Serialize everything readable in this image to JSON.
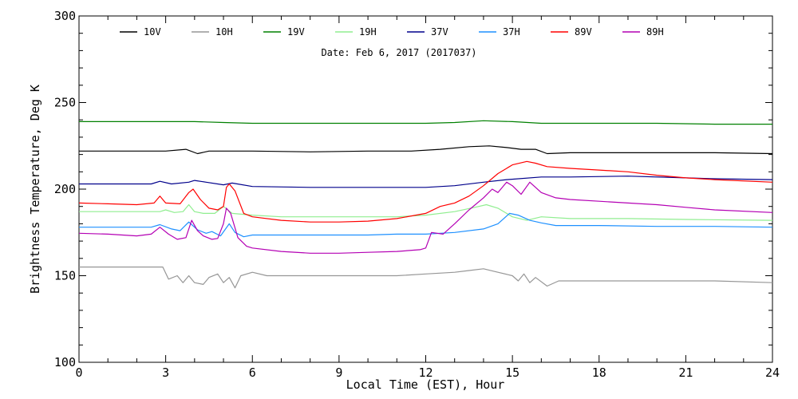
{
  "chart_data": {
    "type": "line",
    "title": "Date: Feb  6, 2017 (2017037)",
    "xlabel": "Local Time (EST), Hour",
    "ylabel": "Brightness Temperature, Deg K",
    "xlim": [
      0,
      24
    ],
    "ylim": [
      100,
      300
    ],
    "xticks": [
      0,
      3,
      6,
      9,
      12,
      15,
      18,
      21,
      24
    ],
    "yticks": [
      100,
      150,
      200,
      250,
      300
    ],
    "grid": false,
    "legend_position": "top",
    "series": [
      {
        "name": "10V",
        "color": "#000000",
        "points": [
          [
            0,
            222
          ],
          [
            2,
            222
          ],
          [
            3,
            222
          ],
          [
            3.7,
            223
          ],
          [
            4.1,
            220.5
          ],
          [
            4.5,
            222
          ],
          [
            6,
            222
          ],
          [
            8,
            221.5
          ],
          [
            10,
            222
          ],
          [
            11.5,
            222
          ],
          [
            12.5,
            223
          ],
          [
            13.5,
            224.5
          ],
          [
            14.2,
            225
          ],
          [
            14.8,
            224
          ],
          [
            15.3,
            223
          ],
          [
            15.8,
            223
          ],
          [
            16.2,
            220.5
          ],
          [
            17,
            221
          ],
          [
            18,
            221
          ],
          [
            20,
            221
          ],
          [
            22,
            221
          ],
          [
            24,
            220.5
          ]
        ]
      },
      {
        "name": "10H",
        "color": "#969696",
        "points": [
          [
            0,
            155
          ],
          [
            1,
            155
          ],
          [
            2,
            155
          ],
          [
            2.9,
            155
          ],
          [
            3.1,
            148
          ],
          [
            3.4,
            150
          ],
          [
            3.6,
            146
          ],
          [
            3.8,
            150
          ],
          [
            4,
            146
          ],
          [
            4.3,
            145
          ],
          [
            4.5,
            149
          ],
          [
            4.8,
            151
          ],
          [
            5,
            146
          ],
          [
            5.2,
            149
          ],
          [
            5.4,
            143
          ],
          [
            5.6,
            150
          ],
          [
            6,
            152
          ],
          [
            6.5,
            150
          ],
          [
            8,
            150
          ],
          [
            10,
            150
          ],
          [
            11,
            150
          ],
          [
            12,
            151
          ],
          [
            13,
            152
          ],
          [
            13.5,
            153
          ],
          [
            14,
            154
          ],
          [
            14.5,
            152
          ],
          [
            15,
            150
          ],
          [
            15.2,
            147
          ],
          [
            15.4,
            151
          ],
          [
            15.6,
            146
          ],
          [
            15.8,
            149
          ],
          [
            16.2,
            144
          ],
          [
            16.6,
            147
          ],
          [
            18,
            147
          ],
          [
            20,
            147
          ],
          [
            22,
            147
          ],
          [
            24,
            146
          ]
        ]
      },
      {
        "name": "19V",
        "color": "#008000",
        "points": [
          [
            0,
            239
          ],
          [
            3,
            239
          ],
          [
            4,
            239
          ],
          [
            5,
            238.5
          ],
          [
            6,
            238
          ],
          [
            9,
            238
          ],
          [
            12,
            238
          ],
          [
            13,
            238.5
          ],
          [
            14,
            239.5
          ],
          [
            15,
            239
          ],
          [
            16,
            238
          ],
          [
            18,
            238
          ],
          [
            20,
            238
          ],
          [
            22,
            237.5
          ],
          [
            24,
            237.5
          ]
        ]
      },
      {
        "name": "19H",
        "color": "#90EE90",
        "points": [
          [
            0,
            187
          ],
          [
            2,
            187
          ],
          [
            2.8,
            187
          ],
          [
            3,
            188
          ],
          [
            3.3,
            186.5
          ],
          [
            3.6,
            187
          ],
          [
            3.8,
            191
          ],
          [
            4,
            187
          ],
          [
            4.3,
            186
          ],
          [
            4.7,
            186
          ],
          [
            5,
            190
          ],
          [
            5.3,
            186
          ],
          [
            6,
            185
          ],
          [
            7,
            184
          ],
          [
            9,
            184
          ],
          [
            11,
            184
          ],
          [
            12,
            185
          ],
          [
            13,
            187
          ],
          [
            13.7,
            189.5
          ],
          [
            14.1,
            191
          ],
          [
            14.5,
            189
          ],
          [
            15,
            184
          ],
          [
            15.5,
            182
          ],
          [
            16,
            184
          ],
          [
            17,
            183
          ],
          [
            19,
            183
          ],
          [
            21,
            182.5
          ],
          [
            24,
            182
          ]
        ]
      },
      {
        "name": "37V",
        "color": "#00008B",
        "points": [
          [
            0,
            203
          ],
          [
            1,
            203
          ],
          [
            2.5,
            203
          ],
          [
            2.8,
            204.5
          ],
          [
            3.2,
            203
          ],
          [
            3.8,
            204
          ],
          [
            4,
            205
          ],
          [
            4.4,
            204
          ],
          [
            5,
            202.5
          ],
          [
            5.3,
            203.5
          ],
          [
            6,
            201.5
          ],
          [
            8,
            201
          ],
          [
            10,
            201
          ],
          [
            12,
            201
          ],
          [
            13,
            202
          ],
          [
            14,
            204
          ],
          [
            14.8,
            205.5
          ],
          [
            16,
            207
          ],
          [
            17,
            207
          ],
          [
            19,
            207.5
          ],
          [
            21,
            206.5
          ],
          [
            22,
            206
          ],
          [
            24,
            205.5
          ]
        ]
      },
      {
        "name": "37H",
        "color": "#1E90FF",
        "points": [
          [
            0,
            178
          ],
          [
            1,
            178
          ],
          [
            2.5,
            178
          ],
          [
            2.8,
            179.5
          ],
          [
            3.2,
            177
          ],
          [
            3.5,
            176
          ],
          [
            3.8,
            181
          ],
          [
            4.1,
            176.5
          ],
          [
            4.4,
            174.5
          ],
          [
            4.6,
            175.5
          ],
          [
            4.9,
            173
          ],
          [
            5.2,
            180
          ],
          [
            5.4,
            175
          ],
          [
            5.7,
            172.5
          ],
          [
            6,
            173.5
          ],
          [
            8,
            173.5
          ],
          [
            10,
            173.5
          ],
          [
            11,
            174
          ],
          [
            12,
            174
          ],
          [
            13,
            175
          ],
          [
            14,
            177
          ],
          [
            14.5,
            180
          ],
          [
            14.9,
            186
          ],
          [
            15.2,
            185
          ],
          [
            15.6,
            182
          ],
          [
            16,
            180.5
          ],
          [
            16.5,
            179
          ],
          [
            18,
            179
          ],
          [
            20,
            178.5
          ],
          [
            22,
            178.5
          ],
          [
            24,
            178
          ]
        ]
      },
      {
        "name": "89V",
        "color": "#FF0000",
        "points": [
          [
            0,
            192
          ],
          [
            1,
            191.5
          ],
          [
            2,
            191
          ],
          [
            2.6,
            192
          ],
          [
            2.8,
            196
          ],
          [
            3,
            192
          ],
          [
            3.5,
            191.5
          ],
          [
            3.8,
            198
          ],
          [
            3.95,
            200
          ],
          [
            4.2,
            194
          ],
          [
            4.5,
            189
          ],
          [
            4.8,
            188
          ],
          [
            5,
            190
          ],
          [
            5.1,
            201
          ],
          [
            5.2,
            203
          ],
          [
            5.4,
            199
          ],
          [
            5.7,
            186
          ],
          [
            6,
            184
          ],
          [
            7,
            182
          ],
          [
            8,
            181
          ],
          [
            9,
            181
          ],
          [
            10,
            181.5
          ],
          [
            11,
            183
          ],
          [
            12,
            186
          ],
          [
            12.5,
            190
          ],
          [
            13,
            192
          ],
          [
            13.5,
            196
          ],
          [
            14,
            202
          ],
          [
            14.5,
            209
          ],
          [
            15,
            214
          ],
          [
            15.5,
            216
          ],
          [
            15.8,
            215
          ],
          [
            16.2,
            213
          ],
          [
            17,
            212
          ],
          [
            18,
            211
          ],
          [
            19,
            210
          ],
          [
            20,
            208
          ],
          [
            21,
            206.5
          ],
          [
            22,
            205.5
          ],
          [
            24,
            204
          ]
        ]
      },
      {
        "name": "89H",
        "color": "#B400B4",
        "points": [
          [
            0,
            174.5
          ],
          [
            1,
            174
          ],
          [
            2,
            173
          ],
          [
            2.5,
            174
          ],
          [
            2.8,
            178
          ],
          [
            3.1,
            174
          ],
          [
            3.4,
            171
          ],
          [
            3.7,
            172
          ],
          [
            3.9,
            182
          ],
          [
            4.1,
            176
          ],
          [
            4.3,
            173
          ],
          [
            4.6,
            171
          ],
          [
            4.8,
            171.5
          ],
          [
            5,
            180
          ],
          [
            5.1,
            189
          ],
          [
            5.25,
            186
          ],
          [
            5.5,
            172
          ],
          [
            5.8,
            167
          ],
          [
            6,
            166
          ],
          [
            7,
            164
          ],
          [
            8,
            163
          ],
          [
            9,
            163
          ],
          [
            10,
            163.5
          ],
          [
            11,
            164
          ],
          [
            11.8,
            165
          ],
          [
            12,
            166
          ],
          [
            12.2,
            175
          ],
          [
            12.6,
            174
          ],
          [
            13,
            180
          ],
          [
            13.5,
            188
          ],
          [
            14,
            195
          ],
          [
            14.3,
            200
          ],
          [
            14.5,
            198
          ],
          [
            14.8,
            204
          ],
          [
            15,
            202
          ],
          [
            15.3,
            197
          ],
          [
            15.6,
            204
          ],
          [
            15.8,
            201
          ],
          [
            16,
            198
          ],
          [
            16.5,
            195
          ],
          [
            17,
            194
          ],
          [
            18,
            193
          ],
          [
            19,
            192
          ],
          [
            20,
            191
          ],
          [
            21,
            189.5
          ],
          [
            22,
            188
          ],
          [
            24,
            186.5
          ]
        ]
      }
    ]
  }
}
